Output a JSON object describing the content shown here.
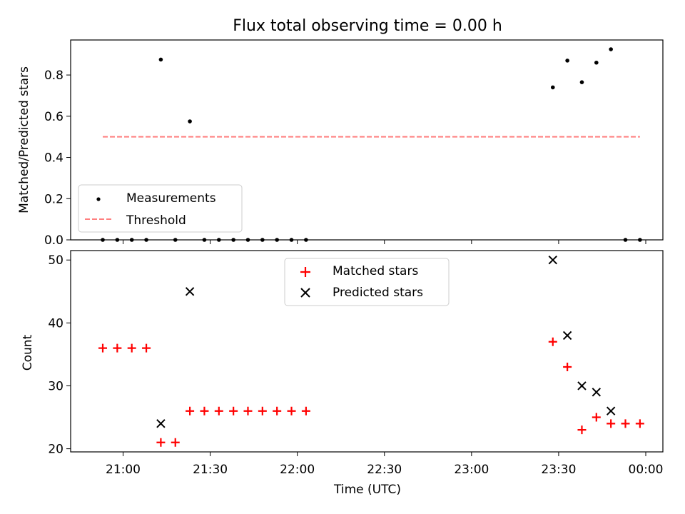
{
  "chart_data": [
    {
      "type": "scatter",
      "title": "Flux total observing time = 0.00 h",
      "xlabel": "",
      "ylabel": "Matched/Predicted stars",
      "ylim": [
        0,
        0.97
      ],
      "yticks": [
        "0.0",
        "0.2",
        "0.4",
        "0.6",
        "0.8"
      ],
      "legend_position": "lower-left",
      "series": [
        {
          "name": "Measurements",
          "color": "#000000",
          "marker": "dot",
          "points": [
            [
              "20:53",
              0.0
            ],
            [
              "20:58",
              0.0
            ],
            [
              "21:03",
              0.0
            ],
            [
              "21:08",
              0.0
            ],
            [
              "21:13",
              0.875
            ],
            [
              "21:18",
              0.0
            ],
            [
              "21:23",
              0.575
            ],
            [
              "21:28",
              0.0
            ],
            [
              "21:33",
              0.0
            ],
            [
              "21:38",
              0.0
            ],
            [
              "21:43",
              0.0
            ],
            [
              "21:48",
              0.0
            ],
            [
              "21:53",
              0.0
            ],
            [
              "21:58",
              0.0
            ],
            [
              "22:03",
              0.0
            ],
            [
              "23:28",
              0.74
            ],
            [
              "23:33",
              0.87
            ],
            [
              "23:38",
              0.765
            ],
            [
              "23:43",
              0.86
            ],
            [
              "23:48",
              0.925
            ],
            [
              "23:53",
              0.0
            ],
            [
              "23:58",
              0.0
            ]
          ]
        },
        {
          "name": "Threshold",
          "color": "#ff7f7f",
          "style": "dashed",
          "points": [
            [
              "20:53",
              0.5
            ],
            [
              "23:58",
              0.5
            ]
          ]
        }
      ]
    },
    {
      "type": "scatter",
      "title": "",
      "xlabel": "Time (UTC)",
      "ylabel": "Count",
      "ylim": [
        19.5,
        51.5
      ],
      "yticks": [
        "20",
        "30",
        "40",
        "50"
      ],
      "xticks": [
        "21:00",
        "21:30",
        "22:00",
        "22:30",
        "23:00",
        "23:30",
        "00:00"
      ],
      "legend_position": "upper-center",
      "series": [
        {
          "name": "Matched stars",
          "color": "#ff0000",
          "marker": "plus",
          "points": [
            [
              "20:53",
              36
            ],
            [
              "20:58",
              36
            ],
            [
              "21:03",
              36
            ],
            [
              "21:08",
              36
            ],
            [
              "21:13",
              21
            ],
            [
              "21:18",
              21
            ],
            [
              "21:23",
              26
            ],
            [
              "21:28",
              26
            ],
            [
              "21:33",
              26
            ],
            [
              "21:38",
              26
            ],
            [
              "21:43",
              26
            ],
            [
              "21:48",
              26
            ],
            [
              "21:53",
              26
            ],
            [
              "21:58",
              26
            ],
            [
              "22:03",
              26
            ],
            [
              "23:28",
              37
            ],
            [
              "23:33",
              33
            ],
            [
              "23:38",
              23
            ],
            [
              "23:43",
              25
            ],
            [
              "23:48",
              24
            ],
            [
              "23:53",
              24
            ],
            [
              "23:58",
              24
            ]
          ]
        },
        {
          "name": "Predicted stars",
          "color": "#000000",
          "marker": "x",
          "points": [
            [
              "21:13",
              24
            ],
            [
              "21:23",
              45
            ],
            [
              "23:28",
              50
            ],
            [
              "23:33",
              38
            ],
            [
              "23:38",
              30
            ],
            [
              "23:43",
              29
            ],
            [
              "23:48",
              26
            ]
          ]
        }
      ]
    }
  ]
}
